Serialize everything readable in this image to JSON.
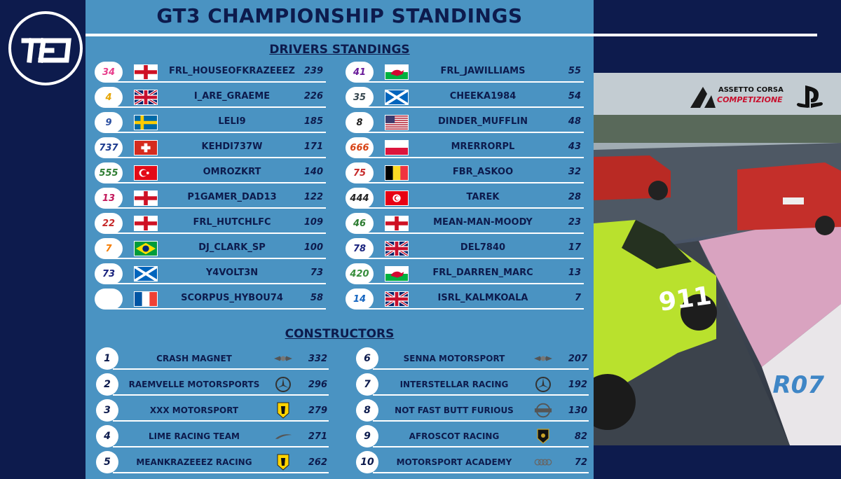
{
  "title": "GT3 CHAMPIONSHIP STANDINGS",
  "drivers_title": "DRIVERS STANDINGS",
  "constructors_title": "CONSTRUCTORS",
  "round_label": "R07",
  "brand": {
    "acc_line1": "ASSETTO CORSA",
    "acc_line2": "COMPETIZIONE"
  },
  "drivers_left": [
    {
      "number": "34",
      "flag": "england",
      "name": "FRL_HOUSEOFKRAZEEEZ",
      "points": "239"
    },
    {
      "number": "4",
      "flag": "uk",
      "name": "I_ARE_GRAEME",
      "points": "226"
    },
    {
      "number": "9",
      "flag": "sweden",
      "name": "LELI9",
      "points": "185"
    },
    {
      "number": "737",
      "flag": "switzerland",
      "name": "KEHDI737W",
      "points": "171"
    },
    {
      "number": "555",
      "flag": "turkey",
      "name": "OMROZKRT",
      "points": "140"
    },
    {
      "number": "13",
      "flag": "england",
      "name": "P1GAMER_DAD13",
      "points": "122"
    },
    {
      "number": "22",
      "flag": "england",
      "name": "FRL_HUTCHLFC",
      "points": "109"
    },
    {
      "number": "7",
      "flag": "brazil",
      "name": "DJ_CLARK_SP",
      "points": "100"
    },
    {
      "number": "73",
      "flag": "scotland",
      "name": "Y4VOLT3N",
      "points": "73"
    },
    {
      "number": "",
      "flag": "france",
      "name": "SCORPUS_HYBOU74",
      "points": "58"
    }
  ],
  "drivers_right": [
    {
      "number": "41",
      "flag": "wales",
      "name": "FRL_JAWILLIAMS",
      "points": "55"
    },
    {
      "number": "35",
      "flag": "scotland",
      "name": "CHEEKA1984",
      "points": "54"
    },
    {
      "number": "8",
      "flag": "usa",
      "name": "DINDER_MUFFLIN",
      "points": "48"
    },
    {
      "number": "666",
      "flag": "poland",
      "name": "MRERRORPL",
      "points": "43"
    },
    {
      "number": "75",
      "flag": "belgium",
      "name": "FBR_ASKOO",
      "points": "32"
    },
    {
      "number": "444",
      "flag": "tunisia",
      "name": "TAREK",
      "points": "28"
    },
    {
      "number": "46",
      "flag": "england",
      "name": "MEAN-MAN-MOODY",
      "points": "23"
    },
    {
      "number": "78",
      "flag": "uk",
      "name": "DEL7840",
      "points": "17"
    },
    {
      "number": "420",
      "flag": "wales",
      "name": "FRL_DARREN_MARC",
      "points": "13"
    },
    {
      "number": "14",
      "flag": "uk",
      "name": "ISRL_KALMKOALA",
      "points": "7"
    }
  ],
  "constructors_left": [
    {
      "pos": "1",
      "name": "CRASH MAGNET",
      "brand": "bentley-icon",
      "points": "332"
    },
    {
      "pos": "2",
      "name": "RAEMVELLE MOTORSPORTS",
      "brand": "mercedes-icon",
      "points": "296"
    },
    {
      "pos": "3",
      "name": "XXX MOTORSPORT",
      "brand": "ferrari-icon",
      "points": "279"
    },
    {
      "pos": "4",
      "name": "LIME RACING TEAM",
      "brand": "mclaren-icon",
      "points": "271"
    },
    {
      "pos": "5",
      "name": "MEANKRAZEEEZ RACING",
      "brand": "ferrari-icon",
      "points": "262"
    }
  ],
  "constructors_right": [
    {
      "pos": "6",
      "name": "SENNA MOTORSPORT",
      "brand": "bentley-icon",
      "points": "207"
    },
    {
      "pos": "7",
      "name": "INTERSTELLAR RACING",
      "brand": "mercedes-icon",
      "points": "192"
    },
    {
      "pos": "8",
      "name": "NOT FAST BUTT FURIOUS",
      "brand": "nissan-icon",
      "points": "130"
    },
    {
      "pos": "9",
      "name": "AFROSCOT RACING",
      "brand": "lamborghini-icon",
      "points": "82"
    },
    {
      "pos": "10",
      "name": "MOTORSPORT ACADEMY",
      "brand": "audi-icon",
      "points": "72"
    }
  ],
  "colors": {
    "navy": "#0d1b4d",
    "panel": "#4a93c2",
    "round": "#3f86c6"
  }
}
